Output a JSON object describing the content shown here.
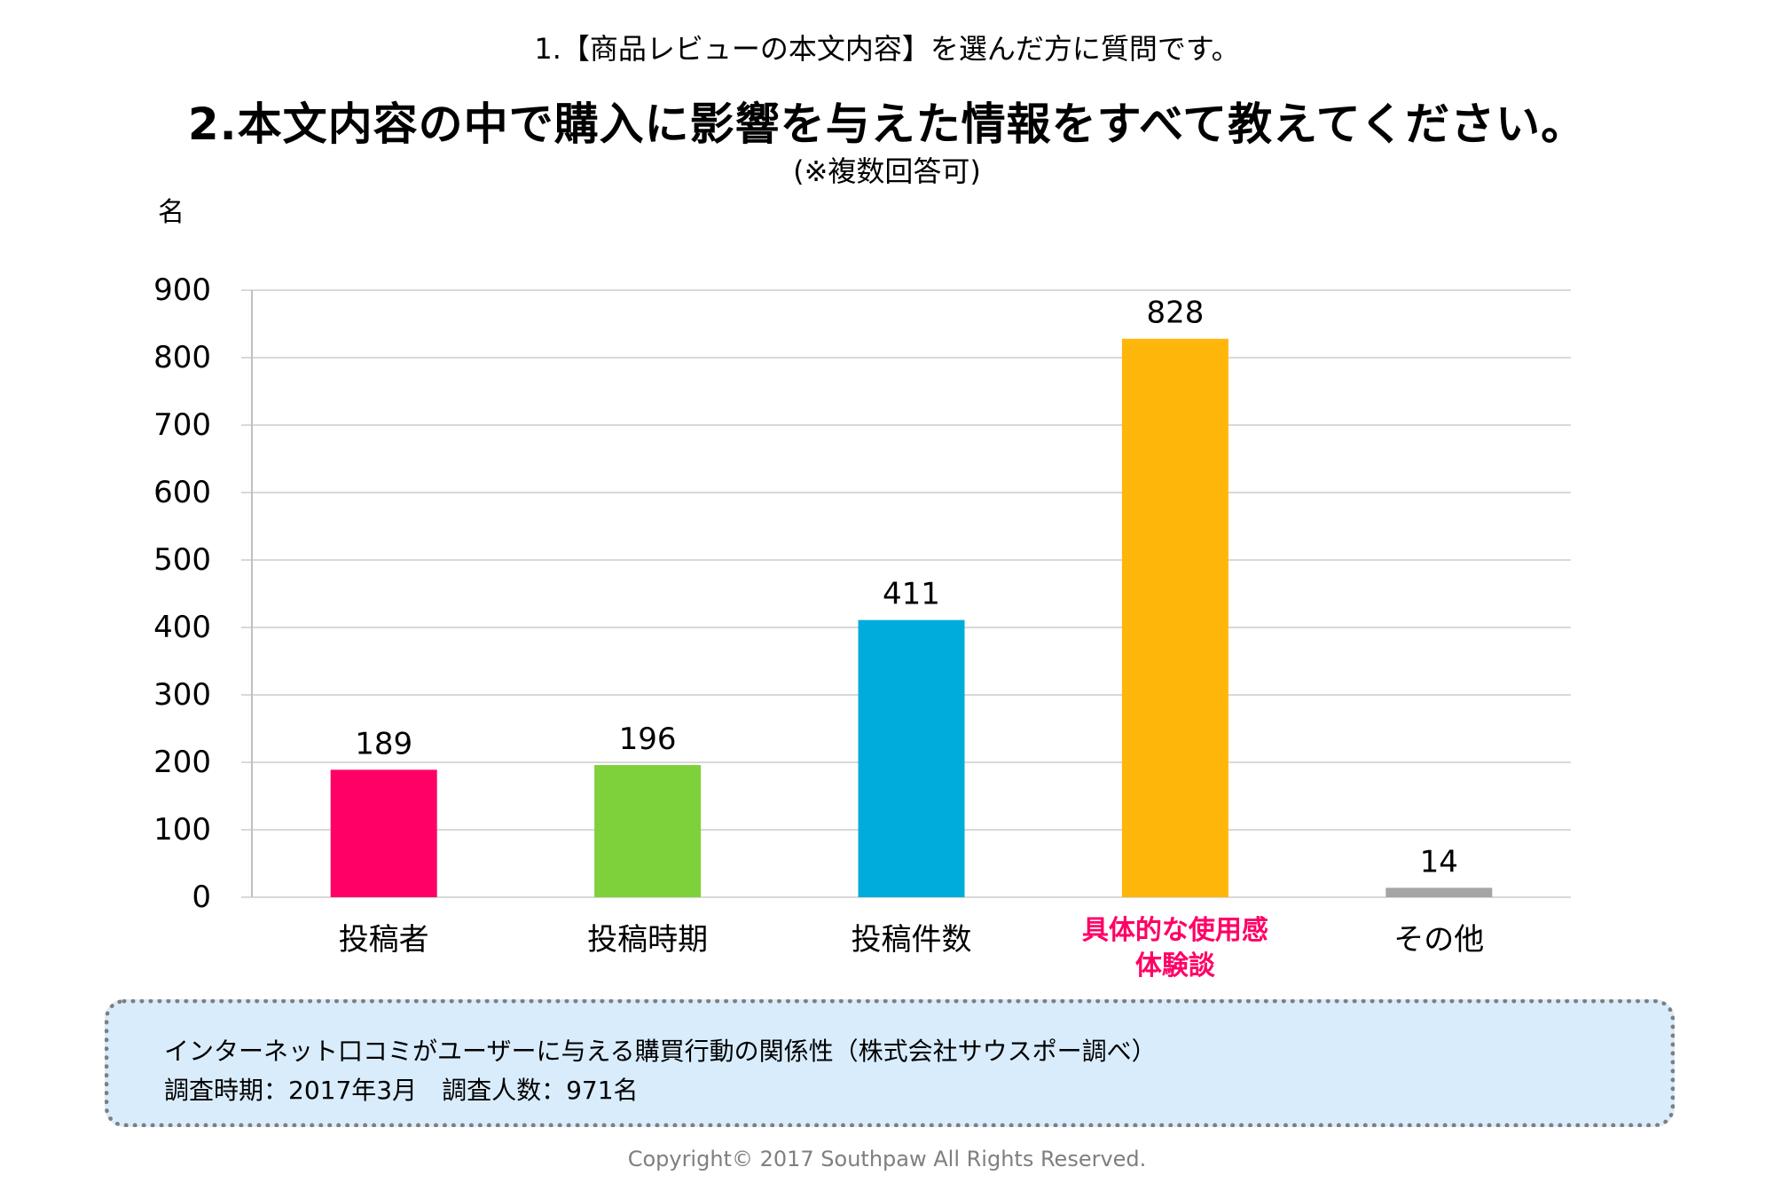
{
  "header": {
    "question_intro": "1.【商品レビューの本文内容】を選んだ方に質問です。",
    "question": "2.本文内容の中で購入に影響を与えた情報をすべて教えてください。",
    "note": "(※複数回答可)"
  },
  "chart_data": {
    "type": "bar",
    "title": "2.本文内容の中で購入に影響を与えた情報をすべて教えてください。",
    "xlabel": "",
    "ylabel": "名",
    "ylim": [
      0,
      900
    ],
    "yticks": [
      0,
      100,
      200,
      300,
      400,
      500,
      600,
      700,
      800,
      900
    ],
    "grid": true,
    "legend": "none",
    "categories": [
      "投稿者",
      "投稿時期",
      "投稿件数",
      "具体的な使用感体験談",
      "その他"
    ],
    "category_lines": [
      [
        "投稿者"
      ],
      [
        "投稿時期"
      ],
      [
        "投稿件数"
      ],
      [
        "具体的な使用感",
        "体験談"
      ],
      [
        "その他"
      ]
    ],
    "values": [
      189,
      196,
      411,
      828,
      14
    ],
    "data_labels": [
      "189",
      "196",
      "411",
      "828",
      "14"
    ],
    "bar_colors": [
      "#ff0066",
      "#7fd13b",
      "#00acdb",
      "#ffb60a",
      "#a5a5a5"
    ],
    "highlight_category_index": 3,
    "highlight_label_color": "#ff0066"
  },
  "info_box": {
    "source": "インターネット口コミがユーザーに与える購買行動の関係性（株式会社サウスポー調べ）",
    "survey": "調査時期：2017年3月　調査人数：971名"
  },
  "footer": {
    "copyright": "Copyright© 2017 Southpaw All Rights Reserved."
  }
}
